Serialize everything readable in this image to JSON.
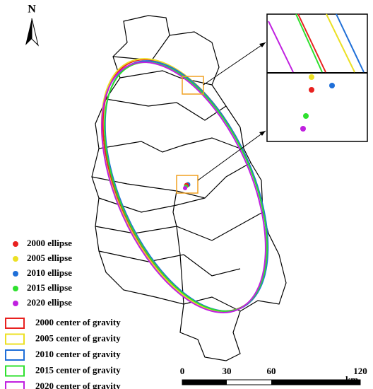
{
  "north_arrow": {
    "label": "N"
  },
  "legend": {
    "items": [
      {
        "label": "2000 ellipse",
        "color": "#e8211f",
        "marker": "dot"
      },
      {
        "label": "2005 ellipse",
        "color": "#ece024",
        "marker": "dot"
      },
      {
        "label": "2010 ellipse",
        "color": "#1f6fd8",
        "marker": "dot"
      },
      {
        "label": "2015 ellipse",
        "color": "#2ee02e",
        "marker": "dot"
      },
      {
        "label": "2020 ellipse",
        "color": "#c020e0",
        "marker": "dot"
      },
      {
        "label": "2000 center of gravity",
        "color": "#e8211f",
        "marker": "box"
      },
      {
        "label": "2005 center of gravity",
        "color": "#ece024",
        "marker": "box"
      },
      {
        "label": "2010 center of gravity",
        "color": "#1f6fd8",
        "marker": "box"
      },
      {
        "label": "2015 center of gravity",
        "color": "#2ee02e",
        "marker": "box"
      },
      {
        "label": "2020 center of gravity",
        "color": "#c020e0",
        "marker": "box"
      }
    ]
  },
  "scale_bar": {
    "ticks": [
      0,
      30,
      60,
      120
    ],
    "unit": "km"
  }
}
